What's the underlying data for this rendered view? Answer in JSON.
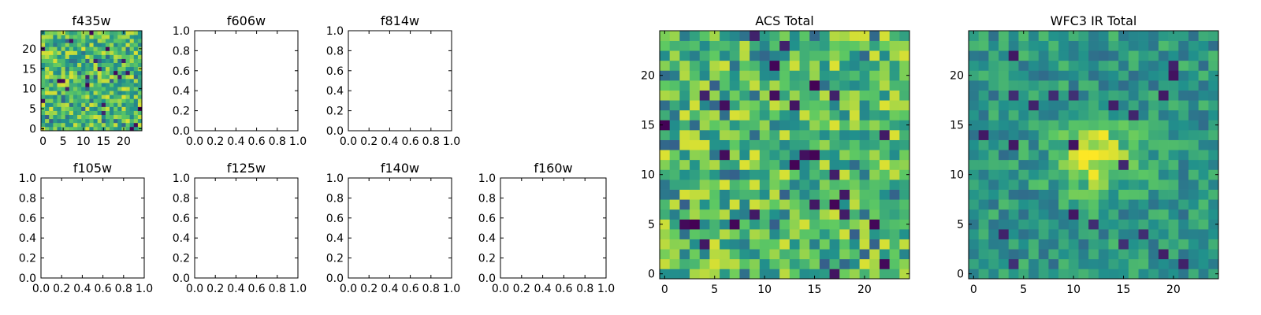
{
  "colormap": [
    "#440154",
    "#3b528b",
    "#21918c",
    "#5ec962",
    "#fde725"
  ],
  "axis_color": "#000000",
  "chart_data": [
    {
      "id": "f435w",
      "type": "heatmap",
      "title": "f435w",
      "grid_size": 25,
      "xlim": [
        -0.5,
        24.5
      ],
      "ylim": [
        -0.5,
        24.5
      ],
      "xticks": [
        0,
        5,
        10,
        15,
        20
      ],
      "yticks": [
        0,
        5,
        10,
        15,
        20
      ],
      "xtick_labels": [
        "0",
        "5",
        "10",
        "15",
        "20"
      ],
      "ytick_labels": [
        "0",
        "5",
        "10",
        "15",
        "20"
      ],
      "image": "noise"
    },
    {
      "id": "f606w",
      "type": "empty",
      "title": "f606w",
      "xlim": [
        0,
        1
      ],
      "ylim": [
        0,
        1
      ],
      "xticks": [
        0,
        0.2,
        0.4,
        0.6,
        0.8,
        1.0
      ],
      "yticks": [
        0,
        0.2,
        0.4,
        0.6,
        0.8,
        1.0
      ],
      "xtick_labels": [
        "0.0",
        "0.2",
        "0.4",
        "0.6",
        "0.8",
        "1.0"
      ],
      "ytick_labels": [
        "0.0",
        "0.2",
        "0.4",
        "0.6",
        "0.8",
        "1.0"
      ]
    },
    {
      "id": "f814w",
      "type": "empty",
      "title": "f814w",
      "xlim": [
        0,
        1
      ],
      "ylim": [
        0,
        1
      ],
      "xticks": [
        0,
        0.2,
        0.4,
        0.6,
        0.8,
        1.0
      ],
      "yticks": [
        0,
        0.2,
        0.4,
        0.6,
        0.8,
        1.0
      ],
      "xtick_labels": [
        "0.0",
        "0.2",
        "0.4",
        "0.6",
        "0.8",
        "1.0"
      ],
      "ytick_labels": [
        "0.0",
        "0.2",
        "0.4",
        "0.6",
        "0.8",
        "1.0"
      ]
    },
    {
      "id": "f105w",
      "type": "empty",
      "title": "f105w",
      "xlim": [
        0,
        1
      ],
      "ylim": [
        0,
        1
      ],
      "xticks": [
        0,
        0.2,
        0.4,
        0.6,
        0.8,
        1.0
      ],
      "yticks": [
        0,
        0.2,
        0.4,
        0.6,
        0.8,
        1.0
      ],
      "xtick_labels": [
        "0.0",
        "0.2",
        "0.4",
        "0.6",
        "0.8",
        "1.0"
      ],
      "ytick_labels": [
        "0.0",
        "0.2",
        "0.4",
        "0.6",
        "0.8",
        "1.0"
      ]
    },
    {
      "id": "f125w",
      "type": "empty",
      "title": "f125w",
      "xlim": [
        0,
        1
      ],
      "ylim": [
        0,
        1
      ],
      "xticks": [
        0,
        0.2,
        0.4,
        0.6,
        0.8,
        1.0
      ],
      "yticks": [
        0,
        0.2,
        0.4,
        0.6,
        0.8,
        1.0
      ],
      "xtick_labels": [
        "0.0",
        "0.2",
        "0.4",
        "0.6",
        "0.8",
        "1.0"
      ],
      "ytick_labels": [
        "0.0",
        "0.2",
        "0.4",
        "0.6",
        "0.8",
        "1.0"
      ]
    },
    {
      "id": "f140w",
      "type": "empty",
      "title": "f140w",
      "xlim": [
        0,
        1
      ],
      "ylim": [
        0,
        1
      ],
      "xticks": [
        0,
        0.2,
        0.4,
        0.6,
        0.8,
        1.0
      ],
      "yticks": [
        0,
        0.2,
        0.4,
        0.6,
        0.8,
        1.0
      ],
      "xtick_labels": [
        "0.0",
        "0.2",
        "0.4",
        "0.6",
        "0.8",
        "1.0"
      ],
      "ytick_labels": [
        "0.0",
        "0.2",
        "0.4",
        "0.6",
        "0.8",
        "1.0"
      ]
    },
    {
      "id": "f160w",
      "type": "empty",
      "title": "f160w",
      "xlim": [
        0,
        1
      ],
      "ylim": [
        0,
        1
      ],
      "xticks": [
        0,
        0.2,
        0.4,
        0.6,
        0.8,
        1.0
      ],
      "yticks": [
        0,
        0.2,
        0.4,
        0.6,
        0.8,
        1.0
      ],
      "xtick_labels": [
        "0.0",
        "0.2",
        "0.4",
        "0.6",
        "0.8",
        "1.0"
      ],
      "ytick_labels": [
        "0.0",
        "0.2",
        "0.4",
        "0.6",
        "0.8",
        "1.0"
      ]
    },
    {
      "id": "acs-total",
      "type": "heatmap",
      "title": "ACS Total",
      "grid_size": 25,
      "xlim": [
        -0.5,
        24.5
      ],
      "ylim": [
        -0.5,
        24.5
      ],
      "xticks": [
        0,
        5,
        10,
        15,
        20
      ],
      "yticks": [
        0,
        5,
        10,
        15,
        20
      ],
      "xtick_labels": [
        "0",
        "5",
        "10",
        "15",
        "20"
      ],
      "ytick_labels": [
        "0",
        "5",
        "10",
        "15",
        "20"
      ],
      "image": "noise"
    },
    {
      "id": "wfc3-ir-total",
      "type": "heatmap",
      "title": "WFC3 IR Total",
      "grid_size": 25,
      "xlim": [
        -0.5,
        24.5
      ],
      "ylim": [
        -0.5,
        24.5
      ],
      "xticks": [
        0,
        5,
        10,
        15,
        20
      ],
      "yticks": [
        0,
        5,
        10,
        15,
        20
      ],
      "xtick_labels": [
        "0",
        "5",
        "10",
        "15",
        "20"
      ],
      "ytick_labels": [
        "0",
        "5",
        "10",
        "15",
        "20"
      ],
      "image": "noise with central bright source",
      "source_center": [
        12,
        12
      ]
    }
  ]
}
